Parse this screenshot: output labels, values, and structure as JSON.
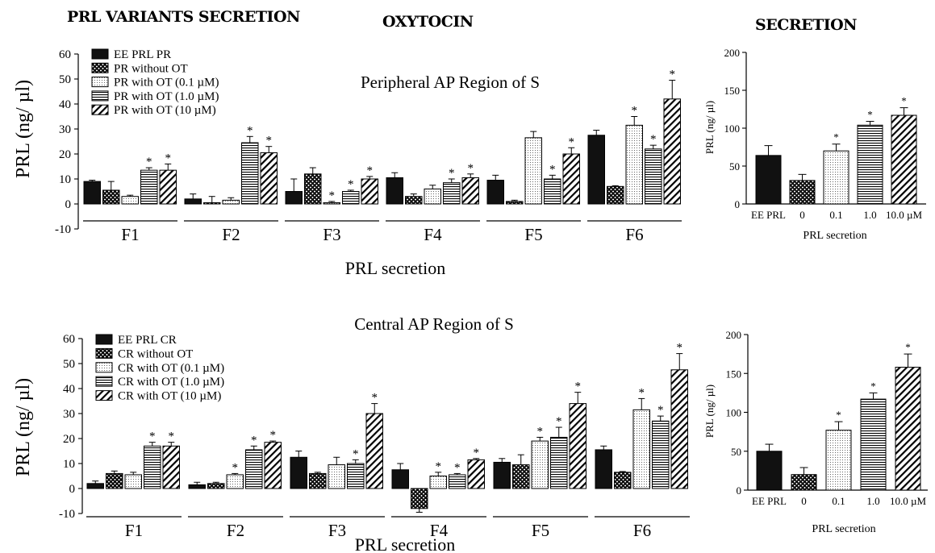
{
  "headings": {
    "left": "PRL VARIANTS SECRETION",
    "middle": "OXYTOCIN",
    "right": "SECRETION"
  },
  "chart_data": [
    {
      "type": "bar",
      "title": "Peripheral  AP Region of S",
      "ylabel": "PRL (ng/ µl)",
      "xlabel": "PRL secretion",
      "ylim": [
        -10,
        60
      ],
      "yticks": [
        -10,
        0,
        10,
        20,
        30,
        40,
        50,
        60
      ],
      "categories": [
        "F1",
        "F2",
        "F3",
        "F4",
        "F5",
        "F6"
      ],
      "legend_position": "top-left",
      "series": [
        {
          "name": "EE PRL PR",
          "pattern": "solid",
          "values": [
            9,
            2,
            5,
            10.5,
            9.5,
            27.5
          ],
          "errors": [
            0.5,
            2,
            5,
            2,
            2,
            2
          ],
          "significant": [
            false,
            false,
            false,
            false,
            false,
            false
          ]
        },
        {
          "name": "PR without OT",
          "pattern": "checker",
          "values": [
            5.5,
            0.5,
            12,
            3,
            1,
            7
          ],
          "errors": [
            3.5,
            2.5,
            2.5,
            1,
            0.5,
            0.3
          ],
          "significant": [
            false,
            false,
            false,
            false,
            false,
            false
          ]
        },
        {
          "name": "PR with OT (0.1 µM)",
          "pattern": "dots",
          "values": [
            3,
            1.5,
            0.5,
            6,
            26.5,
            31.5
          ],
          "errors": [
            0.5,
            1,
            0.5,
            1.5,
            2.5,
            3.5
          ],
          "significant": [
            false,
            false,
            true,
            false,
            false,
            true
          ]
        },
        {
          "name": "PR with OT (1.0 µM)",
          "pattern": "hlines",
          "values": [
            13.5,
            24.5,
            5,
            8.5,
            10,
            22
          ],
          "errors": [
            1,
            2.5,
            0.5,
            1.5,
            1.5,
            1.5
          ],
          "significant": [
            true,
            true,
            true,
            true,
            true,
            true
          ]
        },
        {
          "name": "PR with OT (10 µM)",
          "pattern": "diag",
          "values": [
            13.5,
            20.5,
            10,
            10.5,
            20,
            42
          ],
          "errors": [
            2.5,
            2.5,
            1,
            1.5,
            2.5,
            7.5
          ],
          "significant": [
            true,
            true,
            true,
            true,
            true,
            true
          ]
        }
      ]
    },
    {
      "type": "bar",
      "ylabel": "PRL (ng/ µl)",
      "xlabel": "PRL secretion",
      "ylim": [
        0,
        200
      ],
      "yticks": [
        0,
        50,
        100,
        150,
        200
      ],
      "categories": [
        "EE PRL",
        "0",
        "0.1",
        "1.0",
        "10.0 µM"
      ],
      "patterns": [
        "solid",
        "checker",
        "dots",
        "hlines",
        "diag"
      ],
      "values": [
        64,
        31,
        70,
        104,
        117
      ],
      "errors": [
        13,
        8,
        9,
        5,
        10
      ],
      "significant": [
        false,
        false,
        true,
        true,
        true
      ]
    },
    {
      "type": "bar",
      "title": "Central  AP Region of S",
      "ylabel": "PRL (ng/ µl)",
      "xlabel": "PRL secretion",
      "ylim": [
        -10,
        60
      ],
      "yticks": [
        -10,
        0,
        10,
        20,
        30,
        40,
        50,
        60
      ],
      "categories": [
        "F1",
        "F2",
        "F3",
        "F4",
        "F5",
        "F6"
      ],
      "legend_position": "top-left",
      "series": [
        {
          "name": "EE PRL CR",
          "pattern": "solid",
          "values": [
            2,
            1.5,
            12.5,
            7.5,
            10.5,
            15.5
          ],
          "errors": [
            1,
            1,
            2.5,
            2.5,
            1.5,
            1.5
          ],
          "significant": [
            false,
            false,
            false,
            false,
            false,
            false
          ]
        },
        {
          "name": "CR without OT",
          "pattern": "checker",
          "values": [
            6,
            2,
            6,
            -8,
            9.5,
            6.5
          ],
          "errors": [
            1,
            0.5,
            0.5,
            1.5,
            4,
            0.3
          ],
          "significant": [
            false,
            false,
            false,
            false,
            false,
            false
          ]
        },
        {
          "name": "CR with OT (0.1 µM)",
          "pattern": "dots",
          "values": [
            5.5,
            5.5,
            9.5,
            5,
            19,
            31.5
          ],
          "errors": [
            1,
            0.5,
            3,
            1.5,
            1.5,
            4.5
          ],
          "significant": [
            false,
            true,
            false,
            true,
            true,
            true
          ]
        },
        {
          "name": "CR with OT (1.0 µM)",
          "pattern": "hlines",
          "values": [
            17,
            15.5,
            10,
            5.5,
            20.5,
            27
          ],
          "errors": [
            1.5,
            1.5,
            1.5,
            0.5,
            4,
            2
          ],
          "significant": [
            true,
            true,
            true,
            true,
            true,
            true
          ]
        },
        {
          "name": "CR with OT (10 µM)",
          "pattern": "diag",
          "values": [
            17,
            18.5,
            30,
            11.5,
            34,
            47.5
          ],
          "errors": [
            1.5,
            0.5,
            4,
            0.5,
            4.5,
            6.5
          ],
          "significant": [
            true,
            true,
            true,
            true,
            true,
            true
          ]
        }
      ]
    },
    {
      "type": "bar",
      "ylabel": "PRL (ng/ µl)",
      "xlabel": "PRL secretion",
      "ylim": [
        0,
        200
      ],
      "yticks": [
        0,
        50,
        100,
        150,
        200
      ],
      "categories": [
        "EE PRL",
        "0",
        "0.1",
        "1.0",
        "10.0 µM"
      ],
      "patterns": [
        "solid",
        "checker",
        "dots",
        "hlines",
        "diag"
      ],
      "values": [
        50,
        20,
        77,
        117,
        158
      ],
      "errors": [
        9,
        9,
        11,
        8,
        17
      ],
      "significant": [
        false,
        false,
        true,
        true,
        true
      ]
    }
  ]
}
